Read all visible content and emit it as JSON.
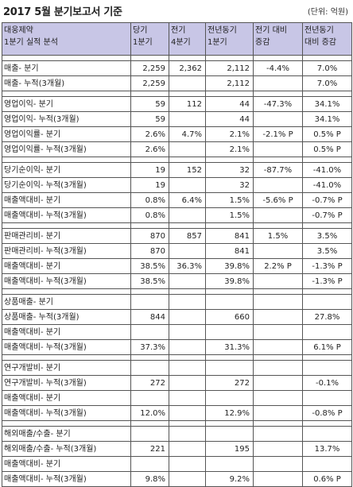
{
  "title": "2017 5월 분기보고서 기준",
  "unit": "(단위: 억원)",
  "header": {
    "company": "대웅제약",
    "subtitle": "1분기 실적 분석",
    "cols": [
      [
        "당기",
        "1분기"
      ],
      [
        "전기",
        "4분기"
      ],
      [
        "전년동기",
        "1분기"
      ],
      [
        "전기 대비",
        "증감"
      ],
      [
        "전년동기",
        "대비 증감"
      ]
    ]
  },
  "groups": [
    {
      "rows": [
        {
          "label": "매출- 분기",
          "v": [
            "2,259",
            "2,362",
            "2,112",
            "-4.4%",
            "7.0%"
          ]
        },
        {
          "label": "매출- 누적(3개월)",
          "v": [
            "2,259",
            "",
            "2,112",
            "",
            "7.0%"
          ]
        }
      ]
    },
    {
      "rows": [
        {
          "label": "영업이익- 분기",
          "v": [
            "59",
            "112",
            "44",
            "-47.3%",
            "34.1%"
          ]
        },
        {
          "label": "영업이익- 누적(3개월)",
          "v": [
            "59",
            "",
            "44",
            "",
            "34.1%"
          ]
        },
        {
          "label": "영업이익률- 분기",
          "v": [
            "2.6%",
            "4.7%",
            "2.1%",
            "-2.1% P",
            "0.5% P"
          ]
        },
        {
          "label": "영업이익률- 누적(3개월)",
          "v": [
            "2.6%",
            "",
            "2.1%",
            "",
            "0.5% P"
          ]
        }
      ]
    },
    {
      "rows": [
        {
          "label": "당기순이익- 분기",
          "v": [
            "19",
            "152",
            "32",
            "-87.7%",
            "-41.0%"
          ]
        },
        {
          "label": "당기순이익- 누적(3개월)",
          "v": [
            "19",
            "",
            "32",
            "",
            "-41.0%"
          ]
        },
        {
          "label": "매출액대비- 분기",
          "v": [
            "0.8%",
            "6.4%",
            "1.5%",
            "-5.6% P",
            "-0.7% P"
          ]
        },
        {
          "label": "매출액대비- 누적(3개월)",
          "v": [
            "0.8%",
            "",
            "1.5%",
            "",
            "-0.7% P"
          ]
        }
      ]
    },
    {
      "rows": [
        {
          "label": "판매관리비- 분기",
          "v": [
            "870",
            "857",
            "841",
            "1.5%",
            "3.5%"
          ]
        },
        {
          "label": "판매관리비- 누적(3개월)",
          "v": [
            "870",
            "",
            "841",
            "",
            "3.5%"
          ]
        },
        {
          "label": "매출액대비- 분기",
          "v": [
            "38.5%",
            "36.3%",
            "39.8%",
            "2.2% P",
            "-1.3% P"
          ]
        },
        {
          "label": "매출액대비- 누적(3개월)",
          "v": [
            "38.5%",
            "",
            "39.8%",
            "",
            "-1.3% P"
          ]
        }
      ]
    },
    {
      "rows": [
        {
          "label": "상품매출- 분기",
          "v": [
            "",
            "",
            "",
            "",
            ""
          ]
        },
        {
          "label": "상품매출- 누적(3개월)",
          "v": [
            "844",
            "",
            "660",
            "",
            "27.8%"
          ]
        },
        {
          "label": "매출액대비- 분기",
          "v": [
            "",
            "",
            "",
            "",
            ""
          ]
        },
        {
          "label": "매출액대비- 누적(3개월)",
          "v": [
            "37.3%",
            "",
            "31.3%",
            "",
            "6.1% P"
          ]
        }
      ]
    },
    {
      "rows": [
        {
          "label": "연구개발비- 분기",
          "v": [
            "",
            "",
            "",
            "",
            ""
          ]
        },
        {
          "label": "연구개발비- 누적(3개월)",
          "v": [
            "272",
            "",
            "272",
            "",
            "-0.1%"
          ]
        },
        {
          "label": "매출액대비- 분기",
          "v": [
            "",
            "",
            "",
            "",
            ""
          ]
        },
        {
          "label": "매출액대비- 누적(3개월)",
          "v": [
            "12.0%",
            "",
            "12.9%",
            "",
            "-0.8% P"
          ]
        }
      ]
    },
    {
      "rows": [
        {
          "label": "해외매출/수출- 분기",
          "v": [
            "",
            "",
            "",
            "",
            ""
          ]
        },
        {
          "label": "해외매출/수출- 누적(3개월)",
          "v": [
            "221",
            "",
            "195",
            "",
            "13.7%"
          ]
        },
        {
          "label": "매출액대비- 분기",
          "v": [
            "",
            "",
            "",
            "",
            ""
          ]
        },
        {
          "label": "매출액대비- 누적(3개월)",
          "v": [
            "9.8%",
            "",
            "9.2%",
            "",
            "0.6% P"
          ]
        }
      ]
    }
  ]
}
